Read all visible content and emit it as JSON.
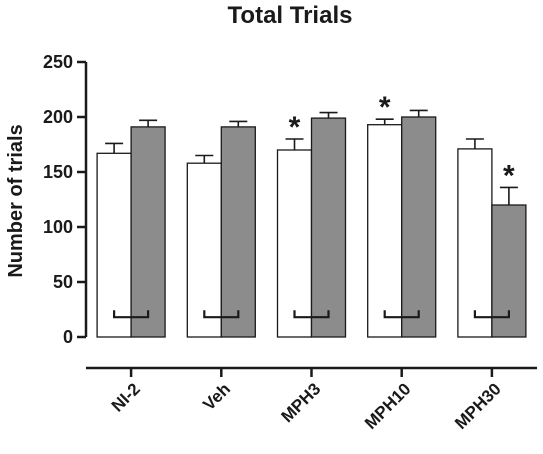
{
  "chart_data": {
    "type": "bar",
    "title": "Total Trials",
    "xlabel": "",
    "ylabel": "Number of trials",
    "ylim": [
      0,
      250
    ],
    "yticks": [
      0,
      50,
      100,
      150,
      200,
      250
    ],
    "categories": [
      "NI-2",
      "Veh",
      "MPH3",
      "MPH10",
      "MPH30"
    ],
    "series": [
      {
        "color": "#ffffff",
        "values": [
          167,
          158,
          170,
          193,
          171
        ],
        "errors": [
          9,
          7,
          10,
          5,
          9
        ],
        "annotations": [
          "",
          "",
          "*",
          "*",
          ""
        ]
      },
      {
        "color": "#8c8c8c",
        "values": [
          191,
          191,
          199,
          200,
          120
        ],
        "errors": [
          6,
          5,
          5,
          6,
          16
        ],
        "annotations": [
          "",
          "",
          "",
          "",
          "*"
        ]
      }
    ],
    "grid": false,
    "legend": "none"
  }
}
